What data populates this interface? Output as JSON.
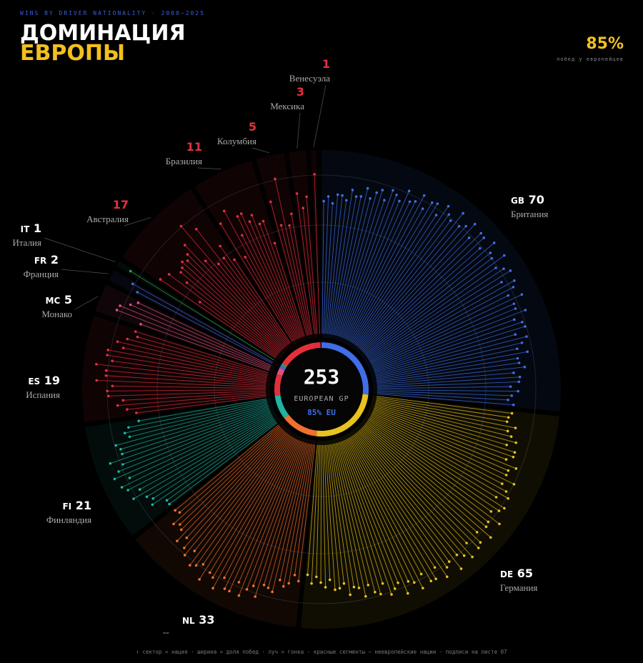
{
  "chart_data": {
    "type": "radial_rays",
    "subtitle": "WINS BY DRIVER NATIONALITY · 2000–2025",
    "title": "ДОМИНАЦИЯ",
    "title_highlight": "ЕВРОПЫ",
    "kpi": {
      "value": 85,
      "label": "85%"
    },
    "kpi_caption": "побед у европейцев",
    "total": 253,
    "center_label": "EUROPEAN GP",
    "center_share": "85% EU",
    "note": "↑ сектор = нация · ширина = доля побед · луч = гонка · красные сегменты — неевропейские нации · подписи на листе 07",
    "nations": [
      {
        "code": "GB",
        "name": "Бритaния",
        "wins": 70,
        "color": "#3f6ee8",
        "european": true
      },
      {
        "code": "DE",
        "name": "Германия",
        "wins": 65,
        "color": "#e8c21e",
        "european": true
      },
      {
        "code": "NL",
        "name": "--",
        "wins": 33,
        "color": "#f0702e",
        "european": true
      },
      {
        "code": "FI",
        "name": "Финляндия",
        "wins": 21,
        "color": "#22b3a2",
        "european": true
      },
      {
        "code": "ES",
        "name": "Испания",
        "wins": 19,
        "color": "#e0303e",
        "european": true
      },
      {
        "code": "MC",
        "name": "Монако",
        "wins": 5,
        "color": "#e0507e",
        "european": true
      },
      {
        "code": "FR",
        "name": "Франция",
        "wins": 2,
        "color": "#4a66d8",
        "european": true
      },
      {
        "code": "IT",
        "name": "Италия",
        "wins": 1,
        "color": "#30a050",
        "european": true
      },
      {
        "name": "Австралия",
        "wins": 17,
        "color": "#e5303c",
        "european": false
      },
      {
        "name": "Бразилия",
        "wins": 11,
        "color": "#e5303c",
        "european": false
      },
      {
        "name": "Колумбия",
        "wins": 5,
        "color": "#e5303c",
        "european": false
      },
      {
        "name": "Мексика",
        "wins": 3,
        "color": "#e5303c",
        "european": false
      },
      {
        "name": "Венесуэла",
        "wins": 1,
        "color": "#e5303c",
        "european": false
      }
    ]
  }
}
